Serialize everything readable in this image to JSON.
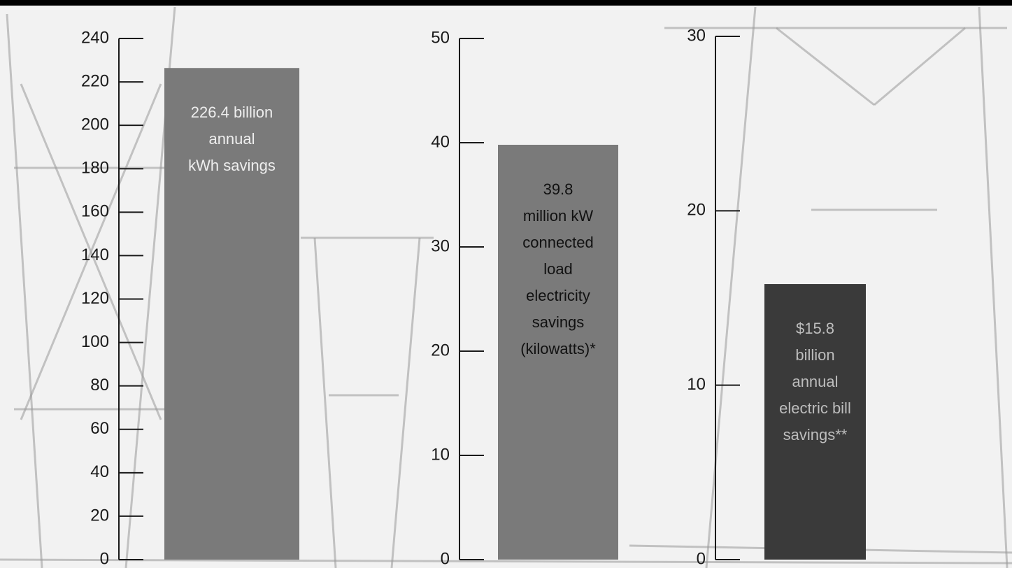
{
  "chart_data": [
    {
      "type": "bar",
      "categories": [
        null
      ],
      "values": [
        226.4
      ],
      "value_labels": [
        "226.4 billion\nannual\nkWh savings"
      ],
      "color": "#7a7a7a",
      "label_color": "#eeeeee",
      "ylim": [
        0,
        240
      ],
      "yticks": [
        0,
        20,
        40,
        60,
        80,
        100,
        120,
        140,
        160,
        180,
        200,
        220,
        240
      ]
    },
    {
      "type": "bar",
      "categories": [
        null
      ],
      "values": [
        39.8
      ],
      "value_labels": [
        "39.8\nmillion kW\nconnected\nload\nelectricity\nsavings\n(kilowatts)*"
      ],
      "color": "#7a7a7a",
      "label_color": "#111111",
      "ylim": [
        0,
        50
      ],
      "yticks": [
        0,
        10,
        20,
        30,
        40,
        50
      ]
    },
    {
      "type": "bar",
      "categories": [
        null
      ],
      "values": [
        15.8
      ],
      "value_labels": [
        "$15.8\nbillion\nannual\nelectric bill\nsavings**"
      ],
      "color": "#3a3a3a",
      "label_color": "#bdbdbd",
      "ylim": [
        0,
        30
      ],
      "yticks": [
        0,
        10,
        20,
        30
      ]
    }
  ]
}
